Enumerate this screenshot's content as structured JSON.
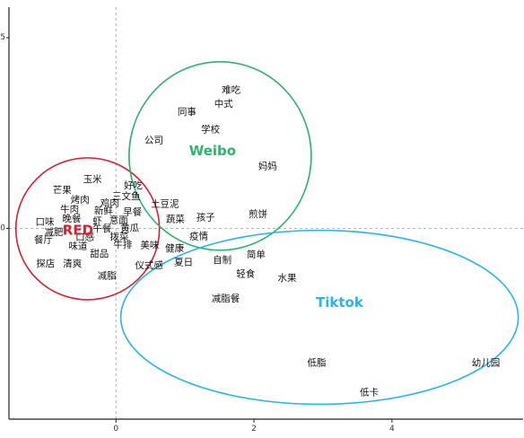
{
  "chart_data": {
    "type": "scatter",
    "title": "",
    "xlabel": "",
    "ylabel": "",
    "xlim": [
      -1.55,
      5.9
    ],
    "ylim": [
      -5.0,
      5.8
    ],
    "x_ticks": [
      {
        "value": 0,
        "label": "0"
      },
      {
        "value": 2,
        "label": "2"
      },
      {
        "value": 4,
        "label": "4"
      }
    ],
    "y_ticks": [
      {
        "value": 5,
        "label": "5"
      },
      {
        "value": 0,
        "label": "0"
      }
    ],
    "reference_lines": {
      "x": 0,
      "y": 0,
      "style": "dashed"
    },
    "points": [
      {
        "label": "难吃",
        "x": 1.67,
        "y": 3.62
      },
      {
        "label": "中式",
        "x": 1.56,
        "y": 3.26
      },
      {
        "label": "同事",
        "x": 1.03,
        "y": 3.05
      },
      {
        "label": "学校",
        "x": 1.37,
        "y": 2.59
      },
      {
        "label": "公司",
        "x": 0.55,
        "y": 2.31
      },
      {
        "label": "妈妈",
        "x": 2.2,
        "y": 1.62
      },
      {
        "label": "玉米",
        "x": -0.34,
        "y": 1.28
      },
      {
        "label": "好吃",
        "x": 0.25,
        "y": 1.12
      },
      {
        "label": "芒果",
        "x": -0.78,
        "y": 1.0
      },
      {
        "label": "三文鱼",
        "x": 0.15,
        "y": 0.84
      },
      {
        "label": "烤肉",
        "x": -0.52,
        "y": 0.74
      },
      {
        "label": "鸡肉",
        "x": -0.09,
        "y": 0.66
      },
      {
        "label": "土豆泥",
        "x": 0.71,
        "y": 0.63
      },
      {
        "label": "牛肉",
        "x": -0.67,
        "y": 0.5
      },
      {
        "label": "新鲜",
        "x": -0.18,
        "y": 0.46
      },
      {
        "label": "早餐",
        "x": 0.24,
        "y": 0.42
      },
      {
        "label": "煎饼",
        "x": 2.06,
        "y": 0.36
      },
      {
        "label": "晚餐",
        "x": -0.64,
        "y": 0.25
      },
      {
        "label": "虾",
        "x": -0.27,
        "y": 0.19
      },
      {
        "label": "意面",
        "x": 0.04,
        "y": 0.21
      },
      {
        "label": "蔬菜",
        "x": 0.86,
        "y": 0.24
      },
      {
        "label": "孩子",
        "x": 1.3,
        "y": 0.28
      },
      {
        "label": "口味",
        "x": -1.03,
        "y": 0.17
      },
      {
        "label": "午餐",
        "x": -0.2,
        "y": -0.01
      },
      {
        "label": "黄瓜",
        "x": 0.2,
        "y": 0.0
      },
      {
        "label": "减肥",
        "x": -0.9,
        "y": -0.1
      },
      {
        "label": "口感",
        "x": -0.45,
        "y": -0.23
      },
      {
        "label": "拨菜",
        "x": 0.05,
        "y": -0.22
      },
      {
        "label": "疫情",
        "x": 1.2,
        "y": -0.21
      },
      {
        "label": "餐厅",
        "x": -1.05,
        "y": -0.31
      },
      {
        "label": "味道",
        "x": -0.55,
        "y": -0.47
      },
      {
        "label": "牛排",
        "x": 0.1,
        "y": -0.44
      },
      {
        "label": "美味",
        "x": 0.49,
        "y": -0.45
      },
      {
        "label": "健康",
        "x": 0.85,
        "y": -0.53
      },
      {
        "label": "甜品",
        "x": -0.24,
        "y": -0.67
      },
      {
        "label": "简单",
        "x": 2.03,
        "y": -0.69
      },
      {
        "label": "自制",
        "x": 1.54,
        "y": -0.83
      },
      {
        "label": "探店",
        "x": -1.02,
        "y": -0.93
      },
      {
        "label": "清爽",
        "x": -0.63,
        "y": -0.93
      },
      {
        "label": "仪式感",
        "x": 0.48,
        "y": -0.98
      },
      {
        "label": "夏日",
        "x": 0.98,
        "y": -0.89
      },
      {
        "label": "轻食",
        "x": 1.88,
        "y": -1.2
      },
      {
        "label": "减脂",
        "x": -0.13,
        "y": -1.25
      },
      {
        "label": "水果",
        "x": 2.48,
        "y": -1.3
      },
      {
        "label": "减脂餐",
        "x": 1.59,
        "y": -1.85
      },
      {
        "label": "低脂",
        "x": 2.91,
        "y": -3.53
      },
      {
        "label": "幼儿园",
        "x": 5.36,
        "y": -3.53
      },
      {
        "label": "低卡",
        "x": 3.67,
        "y": -4.3
      }
    ],
    "groups": [
      {
        "label": "RED",
        "color": "#d42030",
        "cx": -0.41,
        "cy": -0.01,
        "rx": 1.04,
        "ry": 1.86,
        "label_x": -0.55,
        "label_y": -0.05
      },
      {
        "label": "Weibo",
        "color": "#2db36a",
        "cx": 1.51,
        "cy": 1.9,
        "rx": 1.32,
        "ry": 2.47,
        "label_x": 1.4,
        "label_y": 2.03
      },
      {
        "label": "Tiktok",
        "color": "#27b4e6",
        "cx": 2.95,
        "cy": -2.33,
        "rx": 2.88,
        "ry": 2.28,
        "label_x": 3.24,
        "label_y": -1.94
      }
    ]
  }
}
